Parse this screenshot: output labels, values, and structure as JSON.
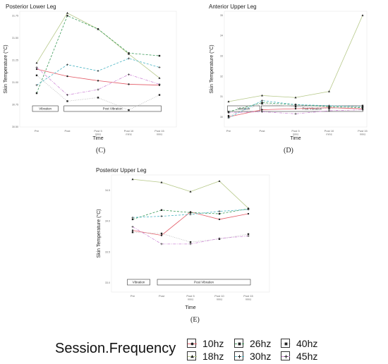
{
  "chart_data": [
    {
      "type": "line",
      "title": "Posterior Lower Leg",
      "letter": "(C)",
      "xlabel": "Time",
      "ylabel": "Skin Temperature (°C)",
      "categories": [
        "Pre",
        "Post",
        "Post 5 mins",
        "Post 10 mins",
        "Post 15 mins"
      ],
      "yticks": [
        "30.50",
        "30.75",
        "31.00",
        "31.25",
        "31.50",
        "31.75"
      ],
      "ylim": [
        30.5,
        31.8
      ],
      "phases": [
        "Vibration",
        "Post Vibration"
      ],
      "series": [
        {
          "name": "10hz",
          "values": [
            31.15,
            31.07,
            31.02,
            30.98,
            30.97
          ]
        },
        {
          "name": "18hz",
          "values": [
            31.22,
            31.78,
            31.6,
            31.32,
            31.05
          ]
        },
        {
          "name": "26hz",
          "values": [
            30.88,
            31.75,
            31.6,
            31.33,
            31.3
          ]
        },
        {
          "name": "30hz",
          "values": [
            30.97,
            31.2,
            31.13,
            31.27,
            31.17
          ]
        },
        {
          "name": "40hz",
          "values": [
            31.08,
            30.79,
            30.83,
            30.69,
            30.86
          ]
        },
        {
          "name": "45hz",
          "values": [
            31.17,
            30.86,
            30.92,
            31.09,
            30.98
          ]
        }
      ]
    },
    {
      "type": "line",
      "title": "Anterior Upper Leg",
      "letter": "(D)",
      "xlabel": "Time",
      "ylabel": "Skin Temperature (°C)",
      "categories": [
        "Pre",
        "Post",
        "Post 5 mins",
        "Post 10 mins",
        "Post 15 mins"
      ],
      "yticks": [
        "30",
        "31",
        "32",
        "33",
        "34",
        "35"
      ],
      "ylim": [
        29.5,
        35.2
      ],
      "phases": [
        "Vibration",
        "Post Vibration"
      ],
      "series": [
        {
          "name": "10hz",
          "values": [
            30.0,
            30.35,
            30.4,
            30.45,
            30.4
          ]
        },
        {
          "name": "18hz",
          "values": [
            30.75,
            31.05,
            30.95,
            31.25,
            35.0
          ]
        },
        {
          "name": "26hz",
          "values": [
            30.25,
            30.7,
            30.6,
            30.5,
            30.45
          ]
        },
        {
          "name": "30hz",
          "values": [
            29.95,
            30.8,
            30.6,
            30.55,
            30.5
          ]
        },
        {
          "name": "40hz",
          "values": [
            30.05,
            30.65,
            30.5,
            30.4,
            30.55
          ]
        },
        {
          "name": "45hz",
          "values": [
            30.2,
            30.25,
            30.15,
            30.3,
            30.35
          ]
        }
      ]
    },
    {
      "type": "line",
      "title": "Posterior Upper Leg",
      "letter": "(E)",
      "xlabel": "Time",
      "ylabel": "Skin Temperature (°C)",
      "categories": [
        "Pre",
        "Post",
        "Post 5 mins",
        "Post 10 mins",
        "Post 15 mins"
      ],
      "yticks": [
        "33.0",
        "33.5",
        "34.0",
        "34.5"
      ],
      "ylim": [
        32.85,
        34.75
      ],
      "phases": [
        "Vibration",
        "Post Vibration"
      ],
      "series": [
        {
          "name": "10hz",
          "values": [
            33.85,
            33.77,
            34.15,
            34.03,
            34.12
          ]
        },
        {
          "name": "18hz",
          "values": [
            34.68,
            34.63,
            34.48,
            34.65,
            34.21
          ]
        },
        {
          "name": "26hz",
          "values": [
            34.03,
            34.18,
            34.14,
            34.12,
            34.2
          ]
        },
        {
          "name": "30hz",
          "values": [
            34.06,
            34.08,
            34.11,
            34.16,
            34.19
          ]
        },
        {
          "name": "40hz",
          "values": [
            33.82,
            33.8,
            33.66,
            33.71,
            33.79
          ]
        },
        {
          "name": "45hz",
          "values": [
            33.91,
            33.63,
            33.63,
            33.72,
            33.76
          ]
        }
      ]
    }
  ],
  "legend": {
    "title": "Session.Frequency",
    "items": [
      "10hz",
      "18hz",
      "26hz",
      "30hz",
      "40hz",
      "45hz"
    ]
  },
  "colors": {
    "10hz": "#e35a66",
    "18hz": "#b7c98a",
    "26hz": "#3a9a58",
    "30hz": "#4bb5c4",
    "40hz": "#b8b8b8",
    "45hz": "#d08ad8"
  }
}
